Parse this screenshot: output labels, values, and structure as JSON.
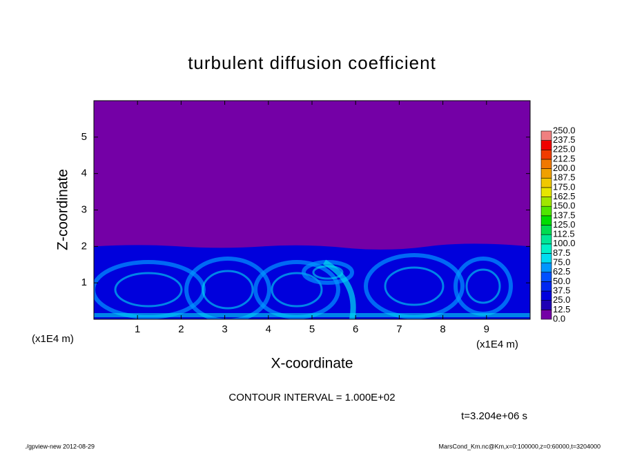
{
  "chart_data": {
    "type": "contour",
    "title": "turbulent diffusion coefficient",
    "x_label": "X-coordinate",
    "y_label": "Z-coordinate",
    "x_unit": "(x1E4 m)",
    "y_unit": "(x1E4 m)",
    "note": "CONTOUR INTERVAL = 1.000E+02",
    "time_label": "t=3.204e+06 s",
    "footer_left": "./gpview-new  2012-08-29",
    "footer_right": "MarsCond_Km.nc@Km,x=0:100000,z=0:60000,t=3204000",
    "xlim": [
      0,
      10
    ],
    "ylim": [
      0,
      6
    ],
    "xticks": [
      1,
      2,
      3,
      4,
      5,
      6,
      7,
      8,
      9
    ],
    "yticks": [
      1,
      2,
      3,
      4,
      5
    ],
    "levels": [
      {
        "value": 0,
        "label": "0.0"
      },
      {
        "value": 12.5,
        "label": "12.5"
      },
      {
        "value": 25,
        "label": "25.0"
      },
      {
        "value": 37.5,
        "label": "37.5"
      },
      {
        "value": 50,
        "label": "50.0"
      },
      {
        "value": 62.5,
        "label": "62.5"
      },
      {
        "value": 75,
        "label": "75.0"
      },
      {
        "value": 87.5,
        "label": "87.5"
      },
      {
        "value": 100,
        "label": "100.0"
      },
      {
        "value": 112.5,
        "label": "112.5"
      },
      {
        "value": 125,
        "label": "125.0"
      },
      {
        "value": 137.5,
        "label": "137.5"
      },
      {
        "value": 150,
        "label": "150.0"
      },
      {
        "value": 162.5,
        "label": "162.5"
      },
      {
        "value": 175,
        "label": "175.0"
      },
      {
        "value": 187.5,
        "label": "187.5"
      },
      {
        "value": 200,
        "label": "200.0"
      },
      {
        "value": 212.5,
        "label": "212.5"
      },
      {
        "value": 225,
        "label": "225.0"
      },
      {
        "value": 237.5,
        "label": "237.5"
      },
      {
        "value": 250,
        "label": "250.0"
      }
    ],
    "colors": [
      "#7400a6",
      "#1e00b4",
      "#0000dc",
      "#0028f0",
      "#0050ff",
      "#0096ff",
      "#00dcf0",
      "#00f0c8",
      "#00e696",
      "#00dc50",
      "#00dc00",
      "#50e600",
      "#a0e600",
      "#e6e600",
      "#f0c800",
      "#f0a000",
      "#f07800",
      "#f03c00",
      "#f00000",
      "#f08080"
    ]
  }
}
